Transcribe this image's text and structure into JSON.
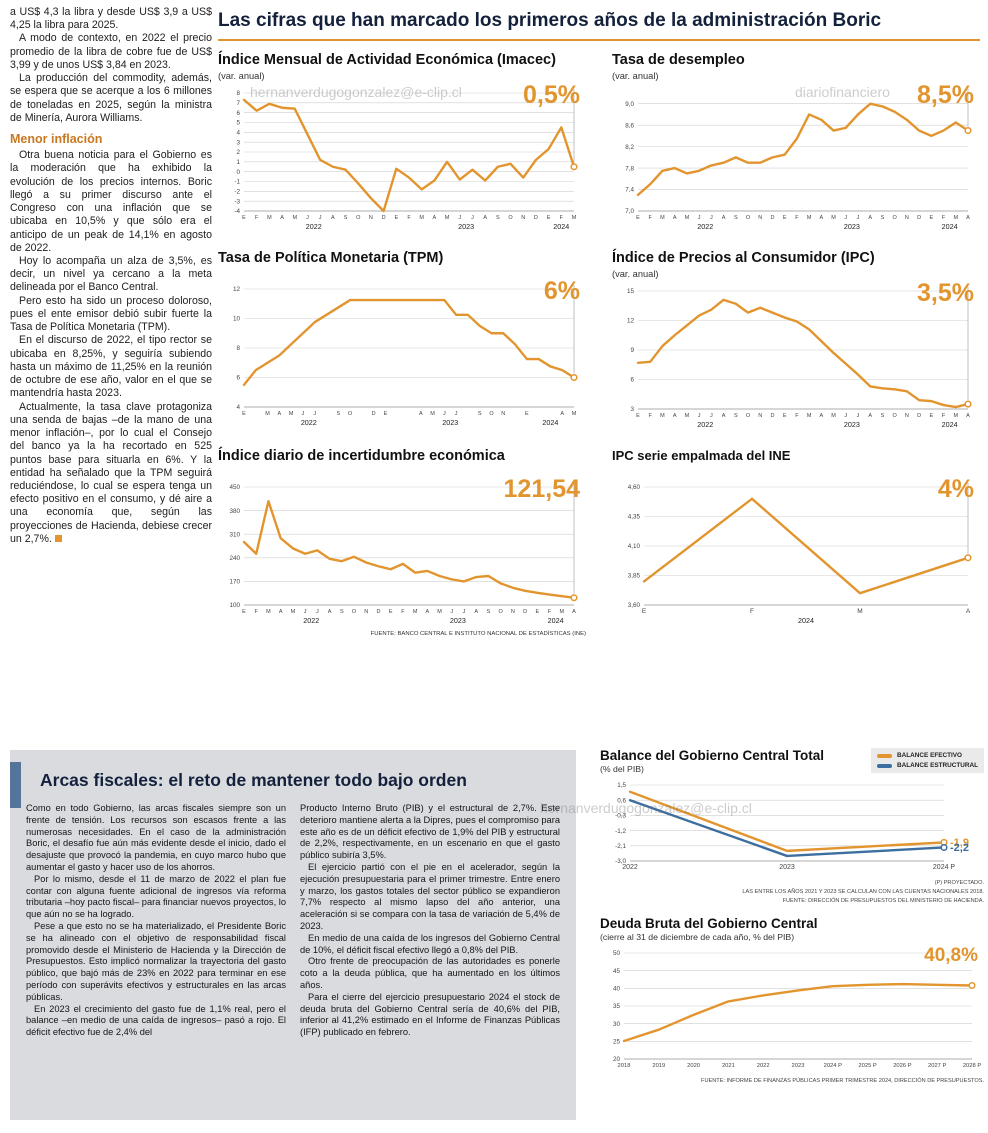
{
  "colors": {
    "accent_orange": "#e2952e",
    "line_blue": "#3c6e9f",
    "panel_gray": "#d9dbdf",
    "bar_blue": "#54749b"
  },
  "watermarks": {
    "email": "hernanverdugogonzalez@e-clip.cl",
    "site": "diariofinanciero"
  },
  "main_title": "Las cifras que han marcado los primeros años de la administración Boric",
  "left_article": {
    "p": [
      "a US$ 4,3 la libra y desde US$ 3,9 a US$ 4,25 la libra para 2025.",
      "A modo de contexto, en 2022 el precio promedio de la libra de cobre fue de US$ 3,99 y de unos US$ 3,84 en 2023.",
      "La producción del commodity, además, se espera que se acerque a los 6 millones de toneladas en 2025, según la ministra de Minería, Aurora Williams."
    ],
    "subhead": "Menor inflación",
    "p2": [
      "Otra buena noticia para el Gobierno es la moderación que ha exhibido la evolución de los precios internos. Boric llegó a su primer discurso ante el Congreso con una inflación que se ubicaba en 10,5% y que sólo era el anticipo de un peak de 14,1% en agosto de 2022.",
      "Hoy lo acompaña un alza de 3,5%, es decir, un nivel ya cercano a la meta delineada por el Banco Central.",
      "Pero esto ha sido un proceso doloroso, pues el ente emisor debió subir fuerte la Tasa de Política Monetaria (TPM).",
      "En el discurso de 2022, el tipo rector se ubicaba en 8,25%, y seguiría subiendo hasta un máximo de 11,25% en la reunión de octubre de ese año, valor en el que se mantendría hasta 2023.",
      "Actualmente, la tasa clave protagoniza una senda de bajas –de la mano de una menor inflación–, por lo cual el Consejo del banco ya la ha recortado en 525 puntos base para situarla en 6%. Y la entidad ha señalado que la TPM seguirá reduciéndose, lo cual se espera tenga un efecto positivo en el consumo, y dé aire a una economía que, según las proyecciones de Hacienda, debiese crecer un 2,7%."
    ]
  },
  "bottom": {
    "heading": "Arcas fiscales: el reto de mantener todo bajo orden",
    "col1": [
      "Como en todo Gobierno, las arcas fiscales siempre son un frente de tensión. Los recursos son escasos frente a las numerosas necesidades. En el caso de la administración Boric, el desafío fue aún más evidente desde el inicio, dado el desajuste que provocó la pandemia, en cuyo marco hubo que aumentar el gasto y hacer uso de los ahorros.",
      "Por lo mismo, desde el 11 de marzo de 2022 el plan fue contar con alguna fuente adicional de ingresos vía reforma tributaria –hoy pacto fiscal– para financiar nuevos proyectos, lo que aún no se ha logrado.",
      "Pese a que esto no se ha materializado, el Presidente Boric se ha alineado con el objetivo de responsabilidad fiscal promovido desde el Ministerio de Hacienda y la Dirección de Presupuestos. Esto implicó normalizar la trayectoria del gasto público, que bajó más de 23% en 2022 para terminar en ese período con superávits efectivos y estructurales en las arcas públicas.",
      "En 2023 el crecimiento del gasto fue de 1,1% real, pero el balance –en medio de una caída de ingresos– pasó a rojo. El déficit efectivo fue de 2,4% del"
    ],
    "col2": [
      "Producto Interno Bruto (PIB) y el estructural de 2,7%. Este deterioro mantiene alerta a la Dipres, pues el compromiso para este año es de un déficit efectivo de 1,9% del PIB y estructural de 2,2%, respectivamente, en un escenario en que el gasto público subiría 3,5%.",
      "El ejercicio partió con el pie en el acelerador, según la ejecución presupuestaria para el primer trimestre. Entre enero y marzo, los gastos totales del sector público se expandieron 7,7% respecto al mismo lapso del año anterior, una aceleración si se compara con la tasa de variación de 5,4% de 2023.",
      "En medio de una caída de los ingresos del Gobierno Central de 10%, el déficit fiscal efectivo llegó a 0,8% del PIB.",
      "Otro frente de preocupación de las autoridades es ponerle coto a la deuda pública, que ha aumentado en los últimos años.",
      "Para el cierre del ejercicio presupuestario 2024 el stock de deuda bruta del Gobierno Central sería de 40,6% del PIB, inferior al 41,2% estimado en el Informe de Finanzas Públicas (IFP) publicado en febrero."
    ]
  },
  "chart_data": [
    {
      "type": "line",
      "title": "Índice Mensual de Actividad Económica (Imacec)",
      "subtitle": "(var. anual)",
      "value_label": "0,5%",
      "ylim": [
        -4,
        8
      ],
      "guide": true,
      "yticks": [
        {
          "label": "8",
          "v": 8
        },
        {
          "label": "7",
          "v": 7
        },
        {
          "label": "6",
          "v": 6
        },
        {
          "label": "5",
          "v": 5
        },
        {
          "label": "4",
          "v": 4
        },
        {
          "label": "3",
          "v": 3
        },
        {
          "label": "2",
          "v": 2
        },
        {
          "label": "1",
          "v": 1
        },
        {
          "label": "0",
          "v": 0
        },
        {
          "label": "-1",
          "v": -1
        },
        {
          "label": "-2",
          "v": -2
        },
        {
          "label": "-3",
          "v": -3
        },
        {
          "label": "-4",
          "v": -4
        }
      ],
      "x_labels": [
        "E",
        "F",
        "M",
        "A",
        "M",
        "J",
        "J",
        "A",
        "S",
        "O",
        "N",
        "D",
        "E",
        "F",
        "M",
        "A",
        "M",
        "J",
        "J",
        "A",
        "S",
        "O",
        "N",
        "D",
        "E",
        "F",
        "M"
      ],
      "year_groups": [
        {
          "label": "2022",
          "from": 0,
          "to": 11
        },
        {
          "label": "2023",
          "from": 12,
          "to": 23
        },
        {
          "label": "2024",
          "from": 24,
          "to": 26
        }
      ],
      "series": [
        {
          "name": "Imacec var. anual",
          "color": "#e2952e",
          "values": [
            7.3,
            6.2,
            6.9,
            6.5,
            6.4,
            3.8,
            1.2,
            0.5,
            0.2,
            -1.2,
            -2.7,
            -4.0,
            0.3,
            -0.6,
            -1.8,
            -0.9,
            1.0,
            -0.8,
            0.2,
            -0.9,
            0.5,
            0.8,
            -0.6,
            1.2,
            2.3,
            4.5,
            0.5
          ]
        }
      ]
    },
    {
      "type": "line",
      "title": "Tasa de desempleo",
      "subtitle": "(var. anual)",
      "value_label": "8,5%",
      "ylim": [
        7.0,
        9.2
      ],
      "guide": true,
      "yticks": [
        {
          "label": "9,0",
          "v": 9.0
        },
        {
          "label": "8,6",
          "v": 8.6
        },
        {
          "label": "8,2",
          "v": 8.2
        },
        {
          "label": "7,8",
          "v": 7.8
        },
        {
          "label": "7,4",
          "v": 7.4
        },
        {
          "label": "7,0",
          "v": 7.0
        }
      ],
      "x_labels": [
        "E",
        "F",
        "M",
        "A",
        "M",
        "J",
        "J",
        "A",
        "S",
        "O",
        "N",
        "D",
        "E",
        "F",
        "M",
        "A",
        "M",
        "J",
        "J",
        "A",
        "S",
        "O",
        "N",
        "D",
        "E",
        "F",
        "M",
        "A"
      ],
      "year_groups": [
        {
          "label": "2022",
          "from": 0,
          "to": 11
        },
        {
          "label": "2023",
          "from": 12,
          "to": 23
        },
        {
          "label": "2024",
          "from": 24,
          "to": 27
        }
      ],
      "series": [
        {
          "name": "Tasa de desempleo",
          "color": "#e2952e",
          "values": [
            7.3,
            7.5,
            7.75,
            7.8,
            7.7,
            7.75,
            7.85,
            7.9,
            8.0,
            7.9,
            7.9,
            8.0,
            8.05,
            8.35,
            8.8,
            8.7,
            8.5,
            8.55,
            8.8,
            9.0,
            8.95,
            8.85,
            8.7,
            8.5,
            8.4,
            8.5,
            8.65,
            8.5
          ]
        }
      ]
    },
    {
      "type": "line",
      "title": "Tasa de Política Monetaria (TPM)",
      "subtitle": "",
      "value_label": "6%",
      "ylim": [
        4,
        12
      ],
      "guide": true,
      "yticks": [
        {
          "label": "12",
          "v": 12
        },
        {
          "label": "10",
          "v": 10
        },
        {
          "label": "8",
          "v": 8
        },
        {
          "label": "6",
          "v": 6
        },
        {
          "label": "4",
          "v": 4
        }
      ],
      "x_labels": [
        "E",
        "",
        "M",
        "A",
        "M",
        "J",
        "J",
        "",
        "S",
        "O",
        "",
        "D",
        "E",
        "",
        "",
        "A",
        "M",
        "J",
        "J",
        "",
        "S",
        "O",
        "N",
        "",
        "E",
        "",
        "",
        "A",
        "M"
      ],
      "year_groups": [
        {
          "label": "2022",
          "from": 0,
          "to": 11
        },
        {
          "label": "2023",
          "from": 12,
          "to": 23
        },
        {
          "label": "2024",
          "from": 24,
          "to": 28
        }
      ],
      "series": [
        {
          "name": "TPM",
          "color": "#e2952e",
          "values": [
            5.5,
            6.5,
            7.0,
            7.5,
            8.25,
            9.0,
            9.75,
            10.25,
            10.75,
            11.25,
            11.25,
            11.25,
            11.25,
            11.25,
            11.25,
            11.25,
            11.25,
            11.25,
            10.25,
            10.25,
            9.5,
            9.0,
            9.0,
            8.25,
            7.25,
            7.25,
            6.75,
            6.5,
            6.0
          ]
        }
      ]
    },
    {
      "type": "line",
      "title": "Índice de Precios al Consumidor (IPC)",
      "subtitle": "(var. anual)",
      "value_label": "3,5%",
      "ylim": [
        3,
        15
      ],
      "guide": true,
      "yticks": [
        {
          "label": "15",
          "v": 15
        },
        {
          "label": "12",
          "v": 12
        },
        {
          "label": "9",
          "v": 9
        },
        {
          "label": "6",
          "v": 6
        },
        {
          "label": "3",
          "v": 3
        }
      ],
      "x_labels": [
        "E",
        "F",
        "M",
        "A",
        "M",
        "J",
        "J",
        "A",
        "S",
        "O",
        "N",
        "D",
        "E",
        "F",
        "M",
        "A",
        "M",
        "J",
        "J",
        "A",
        "S",
        "O",
        "N",
        "D",
        "E",
        "F",
        "M",
        "A"
      ],
      "year_groups": [
        {
          "label": "2022",
          "from": 0,
          "to": 11
        },
        {
          "label": "2023",
          "from": 12,
          "to": 23
        },
        {
          "label": "2024",
          "from": 24,
          "to": 27
        }
      ],
      "series": [
        {
          "name": "IPC var. anual",
          "color": "#e2952e",
          "values": [
            7.7,
            7.8,
            9.4,
            10.5,
            11.5,
            12.5,
            13.1,
            14.1,
            13.7,
            12.8,
            13.3,
            12.8,
            12.3,
            11.9,
            11.1,
            9.9,
            8.7,
            7.6,
            6.5,
            5.3,
            5.1,
            5.0,
            4.8,
            3.9,
            3.8,
            3.4,
            3.2,
            3.5
          ]
        }
      ]
    },
    {
      "type": "line",
      "title": "Índice diario de incertidumbre económica",
      "subtitle": "",
      "value_label": "121,54",
      "source": "FUENTE: BANCO CENTRAL E INSTITUTO NACIONAL DE ESTADÍSTICAS (INE)",
      "ylim": [
        100,
        450
      ],
      "guide": true,
      "yticks": [
        {
          "label": "450",
          "v": 450
        },
        {
          "label": "380",
          "v": 380
        },
        {
          "label": "310",
          "v": 310
        },
        {
          "label": "240",
          "v": 240
        },
        {
          "label": "170",
          "v": 170
        },
        {
          "label": "100",
          "v": 100
        }
      ],
      "x_labels": [
        "E",
        "F",
        "M",
        "A",
        "M",
        "J",
        "J",
        "A",
        "S",
        "O",
        "N",
        "D",
        "E",
        "F",
        "M",
        "A",
        "M",
        "J",
        "J",
        "A",
        "S",
        "O",
        "N",
        "D",
        "E",
        "F",
        "M",
        "A"
      ],
      "year_groups": [
        {
          "label": "2022",
          "from": 0,
          "to": 11
        },
        {
          "label": "2023",
          "from": 12,
          "to": 23
        },
        {
          "label": "2024",
          "from": 24,
          "to": 27
        }
      ],
      "series": [
        {
          "name": "Incertidumbre económica",
          "color": "#e2952e",
          "values": [
            287,
            252,
            408,
            298,
            268,
            252,
            262,
            237,
            230,
            243,
            226,
            215,
            206,
            222,
            196,
            201,
            186,
            176,
            170,
            183,
            186,
            164,
            151,
            142,
            136,
            131,
            126,
            121.54
          ]
        }
      ]
    },
    {
      "type": "line",
      "title": "IPC serie empalmada del INE",
      "subtitle": "",
      "value_label": "4%",
      "ylim": [
        3.6,
        4.6
      ],
      "guide": true,
      "ml": 32,
      "yticks": [
        {
          "label": "4,60",
          "v": 4.6
        },
        {
          "label": "4,35",
          "v": 4.35
        },
        {
          "label": "4,10",
          "v": 4.1
        },
        {
          "label": "3,85",
          "v": 3.85
        },
        {
          "label": "3,60",
          "v": 3.6
        }
      ],
      "x_labels": [
        "E",
        "F",
        "M",
        "A"
      ],
      "xsize": 6.5,
      "year_groups": [
        {
          "label": "2024",
          "from": 0,
          "to": 3
        }
      ],
      "series": [
        {
          "name": "IPC serie empalmada",
          "color": "#e2952e",
          "values": [
            3.8,
            4.5,
            3.7,
            4.0
          ]
        }
      ]
    },
    {
      "type": "line",
      "title": "Balance del Gobierno Central Total",
      "subtitle": "(% del PIB)",
      "notes": [
        "(P) PROYECTADO.",
        "LAS ENTRE LOS AÑOS 2021 Y 2023 SE CALCULAN  CON LAS CUENTAS NACIONALES 2018.",
        "FUENTE: DIRECCIÓN DE PRESUPUESTOS DEL MINISTERIO DE HACIENDA."
      ],
      "ylim": [
        -3.0,
        1.5
      ],
      "guide": false,
      "ml": 30,
      "mr": 40,
      "xsize": 7,
      "yticks": [
        {
          "label": "1,5",
          "v": 1.5
        },
        {
          "label": "0,6",
          "v": 0.6
        },
        {
          "label": "-0,3",
          "v": -0.3
        },
        {
          "label": "-1,2",
          "v": -1.2
        },
        {
          "label": "-2,1",
          "v": -2.1
        },
        {
          "label": "-3,0",
          "v": -3.0
        }
      ],
      "x_labels": [
        "2022",
        "2023",
        "2024 P"
      ],
      "series": [
        {
          "name": "BALANCE EFECTIVO",
          "color": "#e2952e",
          "end_label": "-1,9",
          "values": [
            1.1,
            -2.4,
            -1.9
          ]
        },
        {
          "name": "BALANCE ESTRUCTURAL",
          "color": "#3c6e9f",
          "end_label": "-2,2",
          "values": [
            0.6,
            -2.7,
            -2.2
          ]
        }
      ]
    },
    {
      "type": "line",
      "title": "Deuda Bruta del Gobierno Central",
      "subtitle": "(cierre al 31 de diciembre de cada año, % del PIB)",
      "value_label": "40,8%",
      "source": "FUENTE: INFORME DE FINANZAS PÚBLICAS PRIMER TRIMESTRE 2024, DIRECCIÓN DE PRESUPUESTOS.",
      "ylim": [
        20,
        50
      ],
      "guide": false,
      "ml": 24,
      "xsize": 5.8,
      "yticks": [
        {
          "label": "50",
          "v": 50
        },
        {
          "label": "45",
          "v": 45
        },
        {
          "label": "40",
          "v": 40
        },
        {
          "label": "35",
          "v": 35
        },
        {
          "label": "30",
          "v": 30
        },
        {
          "label": "25",
          "v": 25
        },
        {
          "label": "20",
          "v": 20
        }
      ],
      "x_labels": [
        "2018",
        "2019",
        "2020",
        "2021",
        "2022",
        "2023",
        "2024 P",
        "2025 P",
        "2026 P",
        "2027 P",
        "2028 P"
      ],
      "series": [
        {
          "name": "Deuda bruta % del PIB",
          "color": "#e2952e",
          "values": [
            25.1,
            28.3,
            32.5,
            36.3,
            38.0,
            39.4,
            40.6,
            41.0,
            41.2,
            41.0,
            40.8
          ]
        }
      ]
    }
  ]
}
